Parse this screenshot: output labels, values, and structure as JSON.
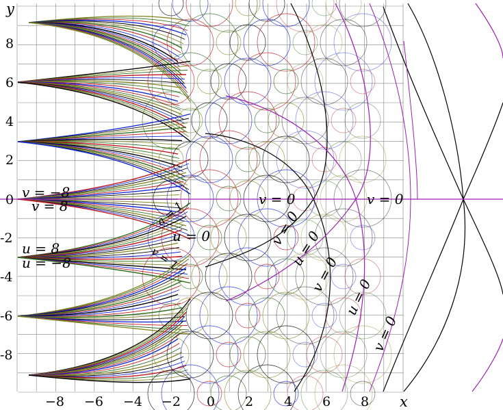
{
  "axes": {
    "x_name": "x",
    "y_name": "y",
    "x_ticks": [
      "−8",
      "−6",
      "−4",
      "−2",
      "0",
      "2",
      "4",
      "6",
      "8"
    ],
    "y_ticks": [
      "8",
      "6",
      "4",
      "2",
      "0",
      "-2",
      "-4",
      "-6",
      "-8"
    ],
    "x_range": [
      -10,
      10
    ],
    "y_range": [
      -10,
      10
    ]
  },
  "labels": {
    "v_neg8": "v = −8",
    "v_pos8": "v = 8",
    "u_pos8": "u = 8",
    "u_neg8": "u = −8",
    "u0_a": "u = 0",
    "u0_b": "u = 0",
    "u0_c": "u = 0",
    "v0_mid": "v = 0",
    "v0_right": "v = 0",
    "v0_c": "v = 0",
    "v0_d": "v = 0",
    "v0_e": "v = 0",
    "small_a": "a = 1",
    "small_b": "v = 1",
    "small_c": "u = 1"
  },
  "colors": {
    "grid": "#808080",
    "black": "#000000",
    "magenta": "#9b1fb0",
    "red": "#c0141a",
    "blue": "#1428d8",
    "green": "#2f6e1f",
    "olive": "#8a8a2a"
  }
}
